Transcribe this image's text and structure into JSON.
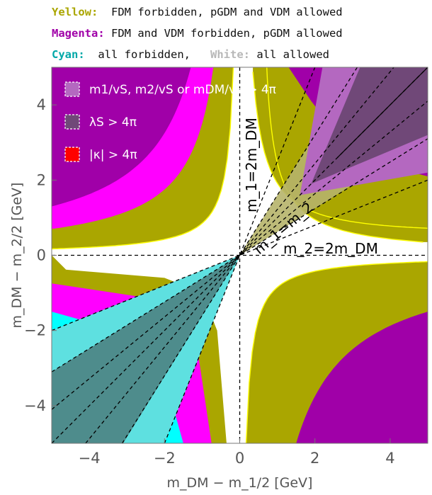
{
  "legend_text": {
    "yellow": {
      "label": "Yellow:",
      "text": "FDM forbidden, pGDM and VDM allowed",
      "color": "#aaa600"
    },
    "magenta": {
      "label": "Magenta:",
      "text": "FDM and VDM forbidden, pGDM allowed",
      "color": "#a000a8"
    },
    "cyan": {
      "label": "Cyan:",
      "text": "all forbidden,",
      "color": "#00a8a8"
    },
    "white": {
      "label": "White:",
      "text": "all allowed",
      "color": "#b8b8b8"
    }
  },
  "chart_data": {
    "type": "region",
    "xlabel": "m_DM − m_1/2 [GeV]",
    "ylabel": "m_DM − m_2/2 [GeV]",
    "xlim": [
      -5,
      5
    ],
    "ylim": [
      -5,
      5
    ],
    "xticks": [
      -4,
      -2,
      0,
      2,
      4
    ],
    "yticks": [
      -4,
      -2,
      0,
      2,
      4
    ],
    "colors": {
      "yellow": "#aaa600",
      "magenta": "#a000a8",
      "magenta_bright": "#ff00ff",
      "cyan": "#00ffff",
      "cyan_shaded": "#5ee0e0",
      "cyan_dark": "#4e8c8c",
      "upper_shaded": "#b468c0",
      "upper_dark": "#704878",
      "yellow_shaded": "#b6b46a",
      "red": "#ff0000"
    },
    "lines": [
      {
        "name": "m1=2mDM",
        "x": 0,
        "label": "m_1=2m_DM"
      },
      {
        "name": "m2=2mDM",
        "y": 0,
        "label": "m_2=2m_DM"
      },
      {
        "name": "m1=m2",
        "slope": 1,
        "label": "m_1=m_2"
      }
    ],
    "constraint_lines_slopes": [
      0.4,
      0.62,
      0.82,
      1.0,
      1.22,
      1.6,
      2.5
    ],
    "key": [
      {
        "label": "m1/vS, m2/vS or mDM/vS > 4π",
        "color": "#b468c0"
      },
      {
        "label": "λS > 4π",
        "color": "#704878"
      },
      {
        "label": "|κ| > 4π",
        "color": "#ff0000"
      }
    ]
  }
}
